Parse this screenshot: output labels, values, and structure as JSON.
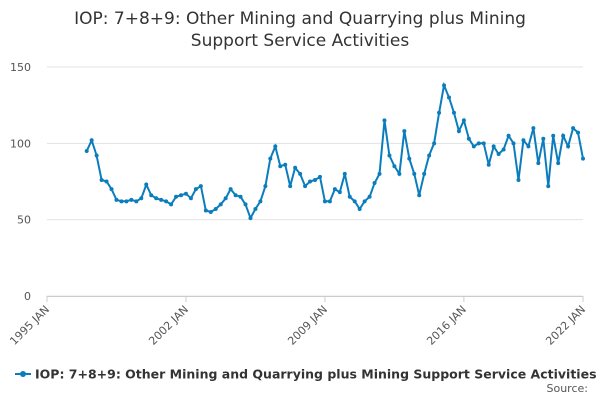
{
  "chart_data": {
    "type": "line",
    "title": "IOP: 7+8+9: Other Mining and Quarrying plus Mining Support Service Activities",
    "source": "Source:",
    "x": [
      "1997 JAN",
      "1997 APR",
      "1997 JUL",
      "1997 OCT",
      "1998 JAN",
      "1998 APR",
      "1998 JUL",
      "1998 OCT",
      "1999 JAN",
      "1999 APR",
      "1999 JUL",
      "1999 OCT",
      "2000 JAN",
      "2000 APR",
      "2000 JUL",
      "2000 OCT",
      "2001 JAN",
      "2001 APR",
      "2001 JUL",
      "2001 OCT",
      "2002 JAN",
      "2002 APR",
      "2002 JUL",
      "2002 OCT",
      "2003 JAN",
      "2003 APR",
      "2003 JUL",
      "2003 OCT",
      "2004 JAN",
      "2004 APR",
      "2004 JUL",
      "2004 OCT",
      "2005 JAN",
      "2005 APR",
      "2005 JUL",
      "2005 OCT",
      "2006 JAN",
      "2006 APR",
      "2006 JUL",
      "2006 OCT",
      "2007 JAN",
      "2007 APR",
      "2007 JUL",
      "2007 OCT",
      "2008 JAN",
      "2008 APR",
      "2008 JUL",
      "2008 OCT",
      "2009 JAN",
      "2009 APR",
      "2009 JUL",
      "2009 OCT",
      "2010 JAN",
      "2010 APR",
      "2010 JUL",
      "2010 OCT",
      "2011 JAN",
      "2011 APR",
      "2011 JUL",
      "2011 OCT",
      "2012 JAN",
      "2012 APR",
      "2012 JUL",
      "2012 OCT",
      "2013 JAN",
      "2013 APR",
      "2013 JUL",
      "2013 OCT",
      "2014 JAN",
      "2014 APR",
      "2014 JUL",
      "2014 OCT",
      "2015 JAN",
      "2015 APR",
      "2015 JUL",
      "2015 OCT",
      "2016 JAN",
      "2016 APR",
      "2016 JUL",
      "2016 OCT",
      "2017 JAN",
      "2017 APR",
      "2017 JUL",
      "2017 OCT",
      "2018 JAN",
      "2018 APR",
      "2018 JUL",
      "2018 OCT",
      "2019 JAN",
      "2019 APR",
      "2019 JUL",
      "2019 OCT",
      "2020 JAN",
      "2020 APR",
      "2020 JUL",
      "2020 OCT",
      "2021 JAN",
      "2021 APR",
      "2021 JUL",
      "2021 OCT",
      "2022 JAN"
    ],
    "series": [
      {
        "name": "IOP: 7+8+9: Other Mining and Quarrying plus Mining Support Service Activities",
        "color": "#0b7dbd",
        "values": [
          95,
          102,
          92,
          76,
          75,
          70,
          63,
          62,
          62,
          63,
          62,
          64,
          73,
          66,
          64,
          63,
          62,
          60,
          65,
          66,
          67,
          64,
          70,
          72,
          56,
          55,
          57,
          60,
          64,
          70,
          66,
          65,
          60,
          51,
          57,
          62,
          72,
          90,
          98,
          85,
          86,
          72,
          84,
          80,
          72,
          75,
          76,
          78,
          62,
          62,
          70,
          68,
          80,
          65,
          62,
          57,
          62,
          65,
          74,
          80,
          115,
          92,
          85,
          80,
          108,
          90,
          80,
          66,
          80,
          92,
          100,
          120,
          138,
          130,
          120,
          108,
          115,
          103,
          98,
          100,
          100,
          86,
          98,
          93,
          96,
          105,
          100,
          76,
          102,
          98,
          110,
          87,
          103,
          72,
          105,
          87,
          105,
          98,
          110,
          107,
          90
        ]
      }
    ],
    "xlim": [
      "1995 JAN",
      "2022 JAN"
    ],
    "xticks": [
      "1995 JAN",
      "2002 JAN",
      "2009 JAN",
      "2016 JAN",
      "2022 JAN"
    ],
    "ylim": [
      0,
      150
    ],
    "yticks": [
      0,
      50,
      100,
      150
    ],
    "grid": true
  }
}
